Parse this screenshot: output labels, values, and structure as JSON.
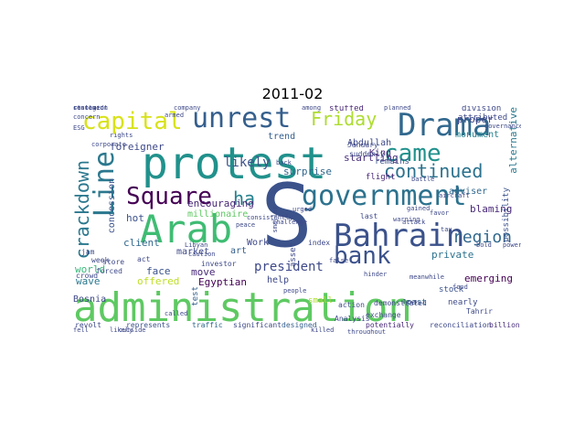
{
  "title": "2011-02",
  "colors": {
    "background": "#ffffff",
    "title": "#000000"
  },
  "words": [
    {
      "t": "administration",
      "c": "#5ec962"
    },
    {
      "t": "S",
      "c": "#3b528b"
    },
    {
      "t": "protest",
      "c": "#21918c"
    },
    {
      "t": "government",
      "c": "#2c728e"
    },
    {
      "t": "Arab",
      "c": "#3fbc73"
    },
    {
      "t": "Bahrain",
      "c": "#3b528b"
    },
    {
      "t": "Drama",
      "c": "#31688e"
    },
    {
      "t": "unrest",
      "c": "#355f8d"
    },
    {
      "t": "came",
      "c": "#21918c"
    },
    {
      "t": "Square",
      "c": "#440154"
    },
    {
      "t": "continued",
      "c": "#2c728e"
    },
    {
      "t": "bank",
      "c": "#3b528b"
    },
    {
      "t": "Line",
      "c": "#2a788e"
    },
    {
      "t": "capital",
      "c": "#d8e219"
    },
    {
      "t": "Friday",
      "c": "#addc30"
    },
    {
      "t": "ha",
      "c": "#26828e"
    },
    {
      "t": "region",
      "c": "#31688e"
    },
    {
      "t": "crackdown",
      "c": "#2a788e"
    },
    {
      "t": "president",
      "c": "#3e4989"
    },
    {
      "t": "likely",
      "c": "#3b528b"
    },
    {
      "t": "encouraging",
      "c": "#482878"
    },
    {
      "t": "surprise",
      "c": "#31688e"
    },
    {
      "t": "trend",
      "c": "#355f8d"
    },
    {
      "t": "King",
      "c": "#482878"
    },
    {
      "t": "startling",
      "c": "#472d7b"
    },
    {
      "t": "Abdullah",
      "c": "#3e4989"
    },
    {
      "t": "millionaire",
      "c": "#5ec962"
    },
    {
      "t": "proper",
      "c": "#3e4989"
    },
    {
      "t": "monument",
      "c": "#26828e"
    },
    {
      "t": "blaming",
      "c": "#482878"
    },
    {
      "t": "adviser",
      "c": "#31688e"
    },
    {
      "t": "private",
      "c": "#2c728e"
    },
    {
      "t": "emerging",
      "c": "#440154"
    },
    {
      "t": "foreigner",
      "c": "#3e4989"
    },
    {
      "t": "concession",
      "c": "#3b528b"
    },
    {
      "t": "client",
      "c": "#31688e"
    },
    {
      "t": "hot",
      "c": "#3b528b"
    },
    {
      "t": "world",
      "c": "#35b779"
    },
    {
      "t": "market",
      "c": "#3e4989"
    },
    {
      "t": "art",
      "c": "#355f8d"
    },
    {
      "t": "face",
      "c": "#3b528b"
    },
    {
      "t": "move",
      "c": "#482878"
    },
    {
      "t": "Egyptian",
      "c": "#440154"
    },
    {
      "t": "help",
      "c": "#3e4989"
    },
    {
      "t": "wave",
      "c": "#2a788e"
    },
    {
      "t": "offered",
      "c": "#bddf26"
    },
    {
      "t": "Bosnia",
      "c": "#3e4989"
    },
    {
      "t": "revolt",
      "c": "#3e4989"
    },
    {
      "t": "represents",
      "c": "#3b528b"
    },
    {
      "t": "traffic",
      "c": "#31688e"
    },
    {
      "t": "significant",
      "c": "#3e4989"
    },
    {
      "t": "designed",
      "c": "#355f8d"
    },
    {
      "t": "potentially",
      "c": "#482878"
    },
    {
      "t": "reconciliation",
      "c": "#3e4989"
    },
    {
      "t": "billion",
      "c": "#472d7b"
    },
    {
      "t": "stock",
      "c": "#3b528b"
    },
    {
      "t": "past",
      "c": "#31688e"
    },
    {
      "t": "nearly",
      "c": "#3e4989"
    },
    {
      "t": "Tahrir",
      "c": "#3e4989"
    },
    {
      "t": "alternative",
      "c": "#2a788e"
    },
    {
      "t": "possibility",
      "c": "#3b528b"
    },
    {
      "t": "asset",
      "c": "#3e4989"
    },
    {
      "t": "test",
      "c": "#355f8d"
    },
    {
      "t": "Work",
      "c": "#3e4989"
    },
    {
      "t": "division",
      "c": "#3e4989"
    },
    {
      "t": "attributed",
      "c": "#3e4989"
    },
    {
      "t": "remains",
      "c": "#3b528b"
    },
    {
      "t": "flight",
      "c": "#482878"
    },
    {
      "t": "stuffed",
      "c": "#482878"
    },
    {
      "t": "January",
      "c": "#3e4989"
    },
    {
      "t": "suddenly",
      "c": "#3e4989"
    },
    {
      "t": "investor",
      "c": "#3e4989"
    },
    {
      "t": "last",
      "c": "#3e4989"
    },
    {
      "t": "index",
      "c": "#3e4989"
    },
    {
      "t": "demonstrated",
      "c": "#3e4989"
    },
    {
      "t": "action",
      "c": "#3e4989"
    },
    {
      "t": "exchange",
      "c": "#3e4989"
    },
    {
      "t": "small",
      "c": "#addc30"
    },
    {
      "t": "Analysis",
      "c": "#3e4989"
    },
    {
      "t": "jam",
      "c": "#3e4989"
    },
    {
      "t": "week",
      "c": "#3e4989"
    },
    {
      "t": "store",
      "c": "#3e4989"
    },
    {
      "t": "forced",
      "c": "#3e4989"
    },
    {
      "t": "crowd",
      "c": "#3e4989"
    },
    {
      "t": "act",
      "c": "#3e4989"
    },
    {
      "t": "company",
      "c": "#3e4989"
    },
    {
      "t": "concern",
      "c": "#3e4989"
    },
    {
      "t": "ESG",
      "c": "#3e4989"
    },
    {
      "t": "rights",
      "c": "#3e4989"
    },
    {
      "t": "corporate",
      "c": "#3e4989"
    },
    {
      "t": "challenge",
      "c": "#3e4989"
    },
    {
      "t": "smaller",
      "c": "#3e4989"
    },
    {
      "t": "consistently",
      "c": "#3e4989"
    },
    {
      "t": "Libyan",
      "c": "#3e4989"
    },
    {
      "t": "caution",
      "c": "#3e4989"
    },
    {
      "t": "killed",
      "c": "#3e4989"
    },
    {
      "t": "peace",
      "c": "#3e4989"
    },
    {
      "t": "likely",
      "c": "#3e4989"
    },
    {
      "t": "called",
      "c": "#3e4989"
    },
    {
      "t": "people",
      "c": "#3e4989"
    },
    {
      "t": "throughout",
      "c": "#3e4989"
    },
    {
      "t": "aircraft",
      "c": "#3e4989"
    },
    {
      "t": "gained",
      "c": "#3e4989"
    },
    {
      "t": "favor",
      "c": "#3e4989"
    },
    {
      "t": "governance",
      "c": "#3e4989"
    },
    {
      "t": "meanwhile",
      "c": "#3e4989"
    },
    {
      "t": "bold",
      "c": "#3e4989"
    },
    {
      "t": "armed",
      "c": "#3e4989"
    },
    {
      "t": "battle",
      "c": "#3e4989"
    },
    {
      "t": "planned",
      "c": "#3e4989"
    },
    {
      "t": "food",
      "c": "#3e4989"
    },
    {
      "t": "urged",
      "c": "#3e4989"
    },
    {
      "t": "among",
      "c": "#3e4989"
    },
    {
      "t": "warning",
      "c": "#3e4989"
    },
    {
      "t": "Jews",
      "c": "#3e4989"
    },
    {
      "t": "tax",
      "c": "#3e4989"
    },
    {
      "t": "fell",
      "c": "#3e4989"
    },
    {
      "t": "false",
      "c": "#3e4989"
    },
    {
      "t": "back",
      "c": "#3e4989"
    },
    {
      "t": "powerful",
      "c": "#3e4989"
    },
    {
      "t": "attack",
      "c": "#3e4989"
    },
    {
      "t": "outside",
      "c": "#3e4989"
    },
    {
      "t": "hinder",
      "c": "#3e4989"
    },
    {
      "t": "resolved",
      "c": "#3e4989"
    },
    {
      "t": "statement",
      "c": "#3e4989"
    },
    {
      "t": "contagion",
      "c": "#3e4989"
    }
  ]
}
